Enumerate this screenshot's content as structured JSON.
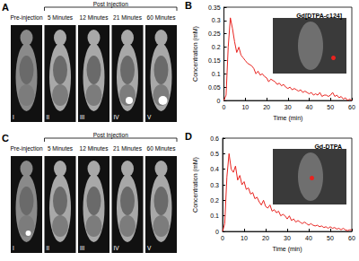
{
  "image_panels": [
    {
      "panel_label": "A",
      "group_label": "Post Injection",
      "frames": [
        {
          "numeral": "I",
          "label": "Pre-injection"
        },
        {
          "numeral": "II",
          "label": "5 Minutes"
        },
        {
          "numeral": "III",
          "label": "12 Minutes"
        },
        {
          "numeral": "IV",
          "label": "21 Minutes"
        },
        {
          "numeral": "V",
          "label": "60 Minutes"
        }
      ]
    },
    {
      "panel_label": "C",
      "group_label": "Post Injection",
      "frames": [
        {
          "numeral": "I",
          "label": "Pre-injection"
        },
        {
          "numeral": "II",
          "label": "5 Minutes"
        },
        {
          "numeral": "III",
          "label": "12 Minutes"
        },
        {
          "numeral": "IV",
          "label": "21 Minutes"
        },
        {
          "numeral": "V",
          "label": "60 Minutes"
        }
      ]
    }
  ],
  "chart_data": [
    {
      "panel_label": "B",
      "type": "line",
      "title": "Gd[DTPA-c124]",
      "x_label": "Time (min)",
      "y_label": "Concentration (mM)",
      "x": [
        0,
        1,
        2,
        3,
        4,
        5,
        6,
        7,
        8,
        9,
        10,
        11,
        12,
        13,
        14,
        15,
        16,
        17,
        18,
        19,
        20,
        21,
        22,
        23,
        24,
        25,
        26,
        27,
        28,
        29,
        30,
        31,
        32,
        33,
        34,
        35,
        36,
        37,
        38,
        39,
        40,
        41,
        42,
        43,
        44,
        45,
        46,
        47,
        48,
        49,
        50,
        51,
        52,
        53,
        54,
        55,
        56,
        57,
        58,
        59,
        60
      ],
      "values": [
        0,
        0.02,
        0.2,
        0.31,
        0.27,
        0.22,
        0.18,
        0.2,
        0.17,
        0.16,
        0.15,
        0.14,
        0.135,
        0.13,
        0.12,
        0.1,
        0.11,
        0.095,
        0.1,
        0.09,
        0.085,
        0.07,
        0.08,
        0.075,
        0.07,
        0.06,
        0.065,
        0.055,
        0.06,
        0.05,
        0.045,
        0.05,
        0.04,
        0.045,
        0.04,
        0.035,
        0.04,
        0.03,
        0.035,
        0.03,
        0.025,
        0.03,
        0.02,
        0.025,
        0.02,
        0.03,
        0.015,
        0.02,
        0.02,
        0.015,
        0.02,
        0.03,
        0.015,
        0.02,
        0.01,
        0.015,
        0.005,
        0.01,
        0,
        0.005,
        0
      ],
      "color": "#e8231f",
      "marker": "none",
      "line_style": "solid",
      "grid": false,
      "xlim": [
        0,
        60
      ],
      "xticks": [
        0,
        10,
        20,
        30,
        40,
        50,
        60
      ],
      "ylim": [
        0,
        0.35
      ],
      "yticks": [
        0,
        0.05,
        0.1,
        0.15,
        0.2,
        0.25,
        0.3,
        0.35
      ]
    },
    {
      "panel_label": "D",
      "type": "line",
      "title": "Gd-DTPA",
      "x_label": "Time (min)",
      "y_label": "Concentration (mM)",
      "x": [
        0,
        1,
        2,
        3,
        4,
        5,
        6,
        7,
        8,
        9,
        10,
        11,
        12,
        13,
        14,
        15,
        16,
        17,
        18,
        19,
        20,
        21,
        22,
        23,
        24,
        25,
        26,
        27,
        28,
        29,
        30,
        31,
        32,
        33,
        34,
        35,
        36,
        37,
        38,
        39,
        40,
        41,
        42,
        43,
        44,
        45,
        46,
        47,
        48,
        49,
        50,
        51,
        52,
        53,
        54,
        55,
        56,
        57,
        58,
        59,
        60
      ],
      "values": [
        0,
        0.05,
        0.35,
        0.5,
        0.4,
        0.38,
        0.42,
        0.33,
        0.36,
        0.3,
        0.32,
        0.27,
        0.28,
        0.24,
        0.25,
        0.21,
        0.22,
        0.19,
        0.17,
        0.2,
        0.16,
        0.15,
        0.17,
        0.13,
        0.14,
        0.12,
        0.13,
        0.1,
        0.11,
        0.1,
        0.08,
        0.1,
        0.07,
        0.08,
        0.06,
        0.07,
        0.06,
        0.05,
        0.06,
        0.05,
        0.04,
        0.05,
        0.04,
        0.035,
        0.04,
        0.03,
        0.035,
        0.025,
        0.03,
        0.02,
        0.03,
        0.02,
        0.025,
        0.015,
        0.02,
        0.01,
        0.02,
        0.01,
        0.005,
        0.01,
        0.01
      ],
      "color": "#e8231f",
      "marker": "none",
      "line_style": "solid",
      "grid": false,
      "xlim": [
        0,
        60
      ],
      "xticks": [
        0,
        10,
        20,
        30,
        40,
        50,
        60
      ],
      "ylim": [
        0,
        0.6
      ],
      "yticks": [
        0,
        0.1,
        0.2,
        0.3,
        0.4,
        0.5,
        0.6
      ]
    }
  ]
}
